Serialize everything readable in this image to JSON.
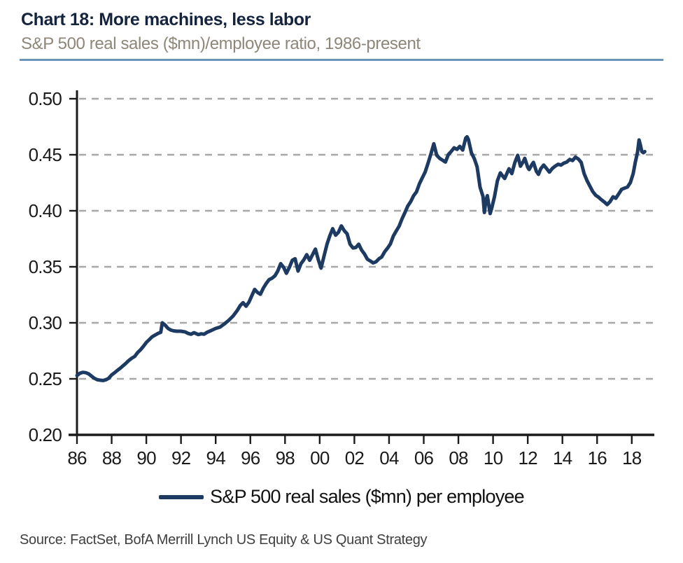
{
  "header": {
    "title": "Chart 18: More machines, less labor",
    "subtitle": "S&P 500 real sales ($mn)/employee ratio, 1986-present"
  },
  "source": "Source: FactSet, BofA Merrill Lynch US Equity & US Quant Strategy",
  "colors": {
    "line": "#1d3a63",
    "title": "#15243e",
    "subtitle": "#8d8679",
    "rule": "#6f94b8",
    "grid": "#a7a7a7",
    "axis": "#1a1a1a",
    "tick_label": "#1a1a1a",
    "source_text": "#3f3f3f"
  },
  "chart_data": {
    "type": "line",
    "title": "Chart 18: More machines, less labor",
    "subtitle": "S&P 500 real sales ($mn)/employee ratio, 1986-present",
    "xlabel": "",
    "ylabel": "",
    "xlim": [
      1986,
      2019.3
    ],
    "ylim": [
      0.2,
      0.5
    ],
    "yticks": [
      0.2,
      0.25,
      0.3,
      0.35,
      0.4,
      0.45,
      0.5
    ],
    "ytick_labels": [
      "0.20",
      "0.25",
      "0.30",
      "0.35",
      "0.40",
      "0.45",
      "0.50"
    ],
    "xticks": [
      1986,
      1988,
      1990,
      1992,
      1994,
      1996,
      1998,
      2000,
      2002,
      2004,
      2006,
      2008,
      2010,
      2012,
      2014,
      2016,
      2018
    ],
    "xtick_labels": [
      "86",
      "88",
      "90",
      "92",
      "94",
      "96",
      "98",
      "00",
      "02",
      "04",
      "06",
      "08",
      "10",
      "12",
      "14",
      "16",
      "18"
    ],
    "grid": "horizontal-dashed",
    "legend": {
      "label": "S&P 500 real sales ($mn) per employee",
      "position": "bottom-center"
    },
    "series": [
      {
        "name": "S&P 500 real sales ($mn) per employee",
        "x": [
          1986.0,
          1986.17,
          1986.33,
          1986.5,
          1986.67,
          1986.83,
          1987.0,
          1987.17,
          1987.33,
          1987.5,
          1987.67,
          1987.83,
          1988.0,
          1988.17,
          1988.33,
          1988.5,
          1988.67,
          1988.83,
          1989.0,
          1989.17,
          1989.33,
          1989.5,
          1989.67,
          1989.83,
          1990.0,
          1990.17,
          1990.33,
          1990.5,
          1990.67,
          1990.83,
          1990.92,
          1991.08,
          1991.25,
          1991.42,
          1991.58,
          1991.75,
          1992.0,
          1992.25,
          1992.42,
          1992.58,
          1992.75,
          1993.0,
          1993.17,
          1993.33,
          1993.5,
          1993.75,
          1994.0,
          1994.25,
          1994.5,
          1994.75,
          1995.0,
          1995.25,
          1995.42,
          1995.58,
          1995.75,
          1995.92,
          1996.08,
          1996.25,
          1996.42,
          1996.58,
          1996.75,
          1996.92,
          1997.08,
          1997.25,
          1997.42,
          1997.58,
          1997.75,
          1997.92,
          1998.08,
          1998.25,
          1998.42,
          1998.58,
          1998.75,
          1998.92,
          1999.08,
          1999.25,
          1999.42,
          1999.58,
          1999.75,
          1999.92,
          2000.08,
          2000.25,
          2000.42,
          2000.58,
          2000.75,
          2000.92,
          2001.08,
          2001.25,
          2001.42,
          2001.58,
          2001.75,
          2001.92,
          2002.08,
          2002.25,
          2002.42,
          2002.58,
          2002.75,
          2002.92,
          2003.08,
          2003.25,
          2003.42,
          2003.58,
          2003.75,
          2003.92,
          2004.08,
          2004.25,
          2004.42,
          2004.58,
          2004.75,
          2004.92,
          2005.08,
          2005.25,
          2005.42,
          2005.58,
          2005.75,
          2005.92,
          2006.08,
          2006.25,
          2006.42,
          2006.58,
          2006.75,
          2006.92,
          2007.08,
          2007.25,
          2007.42,
          2007.58,
          2007.75,
          2007.92,
          2008.08,
          2008.25,
          2008.42,
          2008.5,
          2008.58,
          2008.75,
          2008.92,
          2009.08,
          2009.25,
          2009.42,
          2009.5,
          2009.58,
          2009.67,
          2009.75,
          2009.83,
          2009.92,
          2010.08,
          2010.25,
          2010.42,
          2010.58,
          2010.67,
          2010.83,
          2010.92,
          2011.08,
          2011.25,
          2011.42,
          2011.58,
          2011.75,
          2011.83,
          2012.0,
          2012.08,
          2012.25,
          2012.33,
          2012.5,
          2012.62,
          2012.75,
          2012.92,
          2013.08,
          2013.25,
          2013.42,
          2013.58,
          2013.75,
          2013.92,
          2014.08,
          2014.25,
          2014.42,
          2014.58,
          2014.75,
          2014.92,
          2015.08,
          2015.25,
          2015.42,
          2015.58,
          2015.75,
          2015.92,
          2016.08,
          2016.25,
          2016.42,
          2016.58,
          2016.75,
          2016.92,
          2017.08,
          2017.25,
          2017.42,
          2017.58,
          2017.75,
          2017.92,
          2018.08,
          2018.21,
          2018.33,
          2018.42,
          2018.5,
          2018.58,
          2018.67,
          2018.75
        ],
        "y": [
          0.253,
          0.255,
          0.2558,
          0.2555,
          0.2545,
          0.2525,
          0.2505,
          0.2492,
          0.2488,
          0.2485,
          0.2492,
          0.2505,
          0.2535,
          0.2555,
          0.2575,
          0.2595,
          0.2618,
          0.264,
          0.2665,
          0.2685,
          0.27,
          0.2735,
          0.276,
          0.279,
          0.2825,
          0.285,
          0.2875,
          0.289,
          0.2905,
          0.2915,
          0.3,
          0.298,
          0.295,
          0.2935,
          0.2928,
          0.2925,
          0.2925,
          0.2918,
          0.2905,
          0.2898,
          0.2912,
          0.2895,
          0.2902,
          0.2898,
          0.2915,
          0.2932,
          0.295,
          0.2962,
          0.299,
          0.3022,
          0.306,
          0.3112,
          0.3155,
          0.318,
          0.3148,
          0.3185,
          0.324,
          0.3298,
          0.327,
          0.3255,
          0.331,
          0.3352,
          0.3385,
          0.3398,
          0.342,
          0.3462,
          0.3528,
          0.3495,
          0.3442,
          0.3495,
          0.3558,
          0.3572,
          0.3462,
          0.3528,
          0.3562,
          0.3608,
          0.3558,
          0.3605,
          0.3658,
          0.3562,
          0.3488,
          0.3595,
          0.3702,
          0.3775,
          0.384,
          0.3782,
          0.3808,
          0.3865,
          0.3822,
          0.3795,
          0.3702,
          0.3668,
          0.3672,
          0.3702,
          0.3648,
          0.3615,
          0.3568,
          0.3552,
          0.3535,
          0.3545,
          0.3572,
          0.3588,
          0.3635,
          0.3668,
          0.3705,
          0.3775,
          0.3822,
          0.3862,
          0.3928,
          0.3985,
          0.4042,
          0.4082,
          0.4135,
          0.4168,
          0.424,
          0.4295,
          0.4345,
          0.4425,
          0.451,
          0.4598,
          0.4495,
          0.4468,
          0.4452,
          0.4435,
          0.4502,
          0.4528,
          0.4562,
          0.4548,
          0.4575,
          0.4542,
          0.4648,
          0.466,
          0.4635,
          0.4518,
          0.4465,
          0.4392,
          0.421,
          0.4128,
          0.3985,
          0.4088,
          0.4135,
          0.4055,
          0.3975,
          0.4022,
          0.4125,
          0.4268,
          0.4338,
          0.4305,
          0.4288,
          0.4345,
          0.4375,
          0.4332,
          0.4428,
          0.4495,
          0.4398,
          0.4442,
          0.4468,
          0.4388,
          0.4368,
          0.4415,
          0.4432,
          0.4352,
          0.4325,
          0.4375,
          0.4408,
          0.4378,
          0.4345,
          0.4378,
          0.4398,
          0.4415,
          0.4408,
          0.4425,
          0.4435,
          0.4458,
          0.4448,
          0.4478,
          0.4462,
          0.4432,
          0.4332,
          0.4268,
          0.4222,
          0.4172,
          0.4138,
          0.4122,
          0.4098,
          0.4078,
          0.4055,
          0.4082,
          0.4125,
          0.4112,
          0.4152,
          0.4192,
          0.4202,
          0.4212,
          0.4252,
          0.4332,
          0.4438,
          0.4522,
          0.4632,
          0.4585,
          0.4528,
          0.4518,
          0.4528
        ]
      }
    ]
  }
}
